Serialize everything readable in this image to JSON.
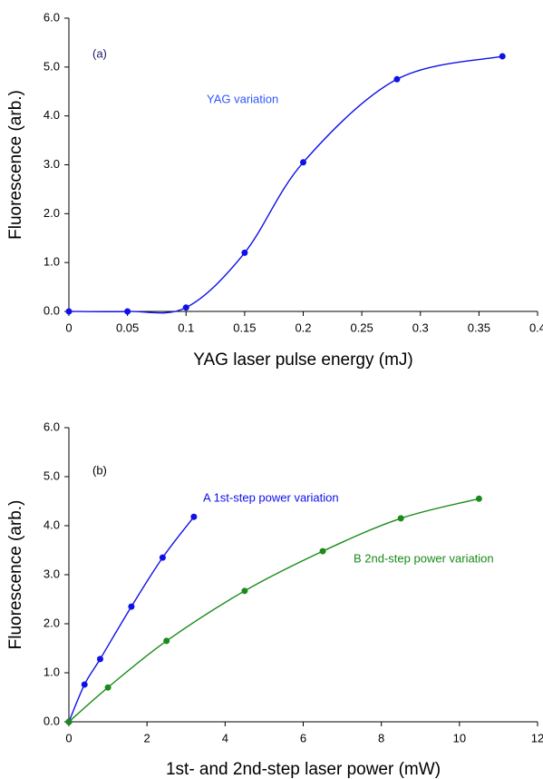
{
  "chart_data": [
    {
      "type": "line",
      "x_label": "YAG laser pulse energy (mJ)",
      "y_label": "Fluorescence (arb.)",
      "annotations": [
        "(a)",
        "YAG variation"
      ],
      "xlim": [
        0,
        0.4
      ],
      "xticks": [
        0,
        0.05,
        0.1,
        0.15,
        0.2,
        0.25,
        0.3,
        0.35,
        0.4
      ],
      "ylim": [
        0,
        6
      ],
      "yticks": [
        {
          "value": 0,
          "label": "0.0"
        },
        {
          "value": 1,
          "label": "1.0"
        },
        {
          "value": 2,
          "label": "2.0"
        },
        {
          "value": 3,
          "label": "3.0"
        },
        {
          "value": 4,
          "label": "4.0"
        },
        {
          "value": 5,
          "label": "5.0"
        },
        {
          "value": 6,
          "label": "6.0"
        }
      ],
      "series": [
        {
          "color": "#1010e8",
          "x": [
            0,
            0.05,
            0.1,
            0.15,
            0.2,
            0.28,
            0.37
          ],
          "values": [
            0,
            0,
            0.08,
            1.2,
            3.05,
            4.75,
            5.22
          ]
        }
      ]
    },
    {
      "type": "line",
      "x_label": "1st- and 2nd-step laser power (mW)",
      "y_label": "Fluorescence (arb.)",
      "annotations": [
        "(b)"
      ],
      "xlim": [
        0,
        12
      ],
      "xticks": [
        0,
        2,
        4,
        6,
        8,
        10,
        12
      ],
      "ylim": [
        0,
        6
      ],
      "yticks": [
        {
          "value": 0,
          "label": "0.0"
        },
        {
          "value": 1,
          "label": "1.0"
        },
        {
          "value": 2,
          "label": "2.0"
        },
        {
          "value": 3,
          "label": "3.0"
        },
        {
          "value": 4,
          "label": "4.0"
        },
        {
          "value": 5,
          "label": "5.0"
        },
        {
          "value": 6,
          "label": "6.0"
        }
      ],
      "series": [
        {
          "name": "A 1st-step power variation",
          "color": "#1010e8",
          "x": [
            0,
            0.4,
            0.8,
            1.6,
            2.4,
            3.2
          ],
          "values": [
            0,
            0.76,
            1.28,
            2.35,
            3.35,
            4.18
          ]
        },
        {
          "name": "B 2nd-step power variation",
          "color": "#1a8a1a",
          "x": [
            0,
            1,
            2.5,
            4.5,
            6.5,
            8.5,
            10.5
          ],
          "values": [
            0,
            0.7,
            1.65,
            2.67,
            3.48,
            4.15,
            4.55
          ]
        }
      ]
    }
  ]
}
